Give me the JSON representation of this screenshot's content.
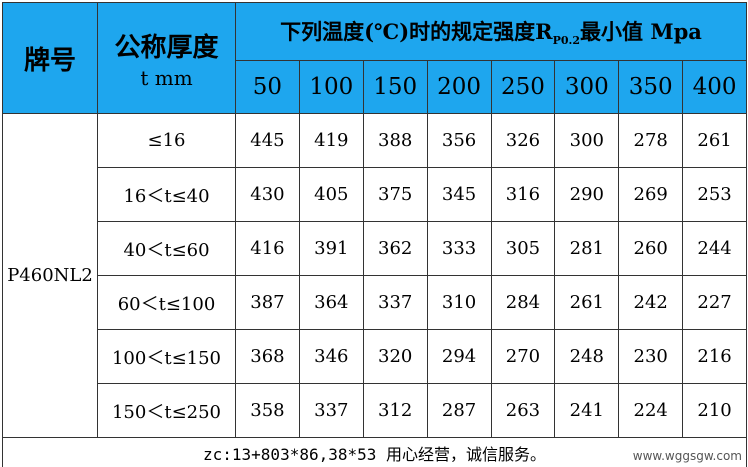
{
  "header": {
    "grade": "牌号",
    "thickness": [
      "公称厚度",
      "t mm"
    ],
    "strength": {
      "before": "下列温度(℃)时的规定强度R",
      "subscript": "P0.2",
      "after": "最小值 Mpa"
    },
    "temperatures": [
      50,
      100,
      150,
      200,
      250,
      300,
      350,
      400
    ]
  },
  "table": {
    "grade": "P460NL2",
    "rows": [
      {
        "thickness": "≤16",
        "values": [
          445,
          419,
          388,
          356,
          326,
          300,
          278,
          261
        ]
      },
      {
        "thickness": "16＜t≤40",
        "values": [
          430,
          405,
          375,
          345,
          316,
          290,
          269,
          253
        ]
      },
      {
        "thickness": "40＜t≤60",
        "values": [
          416,
          391,
          362,
          333,
          305,
          281,
          260,
          244
        ]
      },
      {
        "thickness": "60＜t≤100",
        "values": [
          387,
          364,
          337,
          310,
          284,
          261,
          242,
          227
        ]
      },
      {
        "thickness": "100＜t≤150",
        "values": [
          368,
          346,
          320,
          294,
          270,
          248,
          230,
          216
        ]
      },
      {
        "thickness": "150＜t≤250",
        "values": [
          358,
          337,
          312,
          287,
          263,
          241,
          224,
          210
        ]
      }
    ]
  },
  "footer": "zc:13+803*86,38*53 用心经营，诚信服务。",
  "watermark": "www.wggsgw.com"
}
